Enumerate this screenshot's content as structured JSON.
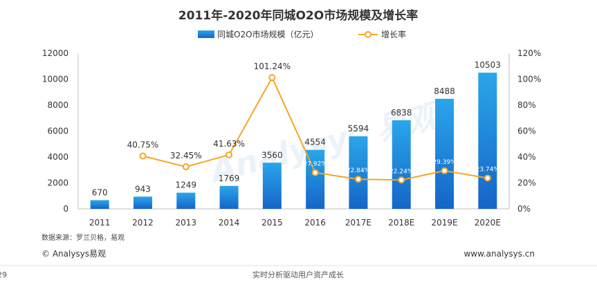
{
  "page": {
    "page_number": "29",
    "slogan": "实时分析驱动用户资产成长"
  },
  "footer": {
    "source": "数据来源：罗兰贝格，易观",
    "copyright": "© Analysys易观",
    "website": "www.analysys.cn"
  },
  "watermark": "Analysys 易观",
  "colors": {
    "bar_top": "#2aa6ea",
    "bar_bottom": "#1565c8",
    "line": "#f5a623",
    "axis": "#bfbfbf",
    "watermark": "#c7dbee"
  },
  "chart_data": {
    "type": "bar",
    "title": "2011年-2020年同城O2O市场规模及增长率",
    "categories": [
      "2011",
      "2012",
      "2013",
      "2014",
      "2015",
      "2016",
      "2017E",
      "2018E",
      "2019E",
      "2020E"
    ],
    "series": [
      {
        "name": "同城O2O市场规模（亿元）",
        "type": "bar",
        "axis": "left",
        "values": [
          670,
          943,
          1249,
          1769,
          3560,
          4554,
          5594,
          6838,
          8488,
          10503
        ],
        "labels": [
          "670",
          "943",
          "1249",
          "1769",
          "3560",
          "4554",
          "5594",
          "6838",
          "8488",
          "10503"
        ]
      },
      {
        "name": "增长率",
        "type": "line",
        "axis": "right",
        "values": [
          null,
          40.75,
          32.45,
          41.63,
          101.24,
          27.92,
          22.84,
          22.24,
          29.39,
          23.74
        ],
        "labels": [
          "",
          "40.75%",
          "32.45%",
          "41.63%",
          "101.24%",
          "27.92%",
          "22.84%",
          "22.24%",
          "29.39%",
          "23.74%"
        ]
      }
    ],
    "y_left": {
      "min": 0,
      "max": 12000,
      "ticks": [
        "0",
        "2000",
        "4000",
        "6000",
        "8000",
        "10000",
        "12000"
      ]
    },
    "y_right": {
      "min": 0,
      "max": 120,
      "ticks": [
        "0%",
        "20%",
        "40%",
        "60%",
        "80%",
        "100%",
        "120%"
      ]
    },
    "grid": false,
    "legend_position": "top-center"
  }
}
